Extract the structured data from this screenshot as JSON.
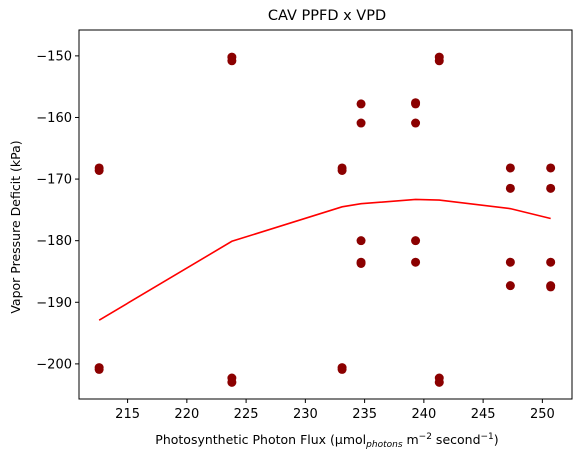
{
  "chart_data": {
    "type": "scatter",
    "title": "CAV PPFD x VPD",
    "xlabel": {
      "prefix": "Photosynthetic Photon Flux (µmol",
      "sub": "photons",
      "mid1": " m",
      "sup1": "−2",
      "mid2": " second",
      "sup2": "−1",
      "suffix": ")"
    },
    "ylabel": "Vapor Pressure Deficit (kPa)",
    "xlim": [
      210.9,
      252.5
    ],
    "ylim": [
      -205.7,
      -145.8
    ],
    "xticks": [
      215,
      220,
      225,
      230,
      235,
      240,
      245,
      250
    ],
    "yticks": [
      -150,
      -160,
      -170,
      -180,
      -190,
      -200
    ],
    "grid": false,
    "colors": {
      "points": "#8b0000",
      "line": "#ff0000",
      "axes": "#000000"
    },
    "series": [
      {
        "kind": "scatter",
        "x": [
          212.6,
          212.6,
          212.6,
          212.6,
          223.8,
          223.8,
          223.8,
          223.8,
          233.1,
          233.1,
          233.1,
          233.1,
          234.7,
          234.7,
          234.7,
          234.7,
          234.7,
          239.3,
          239.3,
          239.3,
          239.3,
          239.3,
          241.3,
          241.3,
          241.3,
          241.3,
          247.3,
          247.3,
          247.3,
          247.3,
          250.7,
          250.7,
          250.7,
          250.7,
          250.7
        ],
        "y": [
          -168.2,
          -168.6,
          -200.6,
          -200.9,
          -150.2,
          -150.8,
          -202.3,
          -203.0,
          -168.2,
          -168.6,
          -200.6,
          -200.9,
          -157.8,
          -160.9,
          -180.0,
          -183.5,
          -183.7,
          -157.8,
          -160.9,
          -180.0,
          -183.5,
          -157.6,
          -150.2,
          -150.8,
          -202.3,
          -203.0,
          -168.2,
          -171.5,
          -183.5,
          -187.3,
          -168.2,
          -171.5,
          -183.5,
          -187.3,
          -187.5
        ]
      },
      {
        "kind": "line",
        "x": [
          212.6,
          223.8,
          233.1,
          234.7,
          239.3,
          241.3,
          247.3,
          250.7
        ],
        "y": [
          -192.9,
          -180.1,
          -174.5,
          -174.0,
          -173.3,
          -173.4,
          -174.8,
          -176.4
        ]
      }
    ]
  }
}
